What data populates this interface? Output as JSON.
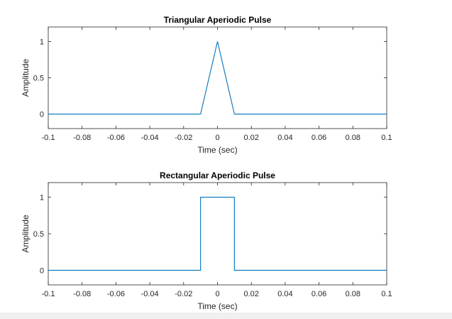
{
  "chart_data": [
    {
      "type": "line",
      "title": "Triangular Aperiodic Pulse",
      "xlabel": "Time (sec)",
      "ylabel": "Amplitude",
      "xlim": [
        -0.1,
        0.1
      ],
      "ylim": [
        -0.2,
        1.2
      ],
      "xticks": [
        -0.1,
        -0.08,
        -0.06,
        -0.04,
        -0.02,
        0,
        0.02,
        0.04,
        0.06,
        0.08,
        0.1
      ],
      "xtick_labels": [
        "-0.1",
        "-0.08",
        "-0.06",
        "-0.04",
        "-0.02",
        "0",
        "0.02",
        "0.04",
        "0.06",
        "0.08",
        "0.1"
      ],
      "yticks": [
        0,
        0.5,
        1
      ],
      "ytick_labels": [
        "0",
        "0.5",
        "1"
      ],
      "grid": false,
      "line_color": "#0072BD",
      "series": [
        {
          "x": [
            -0.1,
            -0.01,
            0,
            0.01,
            0.1
          ],
          "y": [
            0,
            0,
            1,
            0,
            0
          ]
        }
      ]
    },
    {
      "type": "line",
      "title": "Rectangular Aperiodic Pulse",
      "xlabel": "Time (sec)",
      "ylabel": "Amplitude",
      "xlim": [
        -0.1,
        0.1
      ],
      "ylim": [
        -0.2,
        1.2
      ],
      "xticks": [
        -0.1,
        -0.08,
        -0.06,
        -0.04,
        -0.02,
        0,
        0.02,
        0.04,
        0.06,
        0.08,
        0.1
      ],
      "xtick_labels": [
        "-0.1",
        "-0.08",
        "-0.06",
        "-0.04",
        "-0.02",
        "0",
        "0.02",
        "0.04",
        "0.06",
        "0.08",
        "0.1"
      ],
      "yticks": [
        0,
        0.5,
        1
      ],
      "ytick_labels": [
        "0",
        "0.5",
        "1"
      ],
      "grid": false,
      "line_color": "#0072BD",
      "series": [
        {
          "x": [
            -0.1,
            -0.01,
            -0.01,
            0.01,
            0.01,
            0.1
          ],
          "y": [
            0,
            0,
            1,
            1,
            0,
            0
          ]
        }
      ]
    }
  ]
}
